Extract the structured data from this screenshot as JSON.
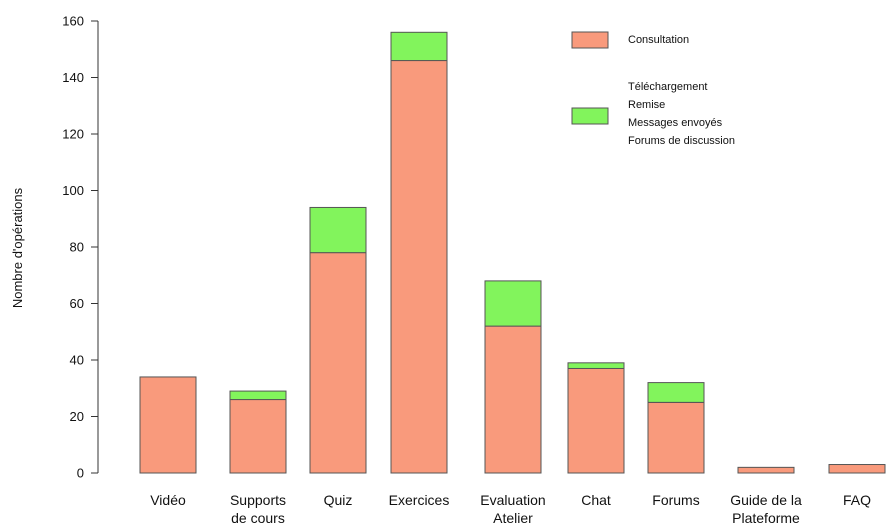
{
  "chart_data": {
    "type": "bar",
    "stacked": true,
    "ylabel": "Nombre d'opérations",
    "xlabel": "",
    "ylim": [
      0,
      160
    ],
    "yticks": [
      0,
      20,
      40,
      60,
      80,
      100,
      120,
      140,
      160
    ],
    "grid": false,
    "legend_position": "top-right",
    "categories": [
      [
        "Vidéo"
      ],
      [
        "Supports",
        "de cours"
      ],
      [
        "Quiz"
      ],
      [
        "Exercices"
      ],
      [
        "Evaluation",
        "Atelier"
      ],
      [
        "Chat"
      ],
      [
        "Forums"
      ],
      [
        "Guide de la",
        "Plateforme"
      ],
      [
        "FAQ"
      ]
    ],
    "series": [
      {
        "name": "Consultation",
        "color": "#f99a7c",
        "values": [
          34,
          26,
          78,
          146,
          52,
          37,
          25,
          2,
          3
        ]
      },
      {
        "name": "Téléchargement / Remise / Messages envoyés / Forums de discussion",
        "color": "#82f45c",
        "values": [
          0,
          3,
          16,
          10,
          16,
          2,
          7,
          0,
          0
        ]
      }
    ],
    "legend": [
      {
        "series": 0,
        "lines": [
          "Consultation"
        ]
      },
      {
        "series": 1,
        "lines": [
          "Téléchargement",
          "Remise",
          "Messages envoyés",
          "Forums de discussion"
        ]
      }
    ]
  }
}
